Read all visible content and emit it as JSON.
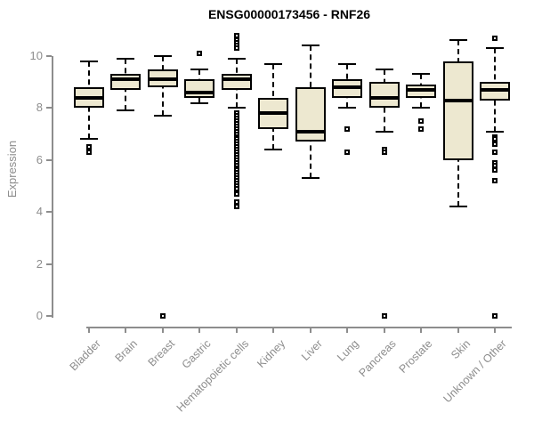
{
  "title": "ENSG00000173456 - RNF26",
  "chart_data": {
    "type": "boxplot",
    "title": "ENSG00000173456 - RNF26",
    "xlabel": "",
    "ylabel": "Expression",
    "ylim": [
      0,
      10.8
    ],
    "yticks": [
      0,
      2,
      4,
      6,
      8,
      10
    ],
    "grid": false,
    "legend": "none",
    "box_fill_color": "#ede8d0",
    "box_line_color": "#000000",
    "axis_color": "#8d8d8d",
    "categories": [
      "Bladder",
      "Brain",
      "Breast",
      "Gastric",
      "Hematopoietic cells",
      "Kidney",
      "Liver",
      "Lung",
      "Pancreas",
      "Prostate",
      "Skin",
      "Unknown / Other"
    ],
    "series": [
      {
        "name": "Bladder",
        "low": 6.8,
        "q1": 8.0,
        "median": 8.4,
        "q3": 8.8,
        "high": 9.8,
        "outliers": [
          6.5,
          6.3
        ]
      },
      {
        "name": "Brain",
        "low": 7.9,
        "q1": 8.7,
        "median": 9.1,
        "q3": 9.3,
        "high": 9.9,
        "outliers": []
      },
      {
        "name": "Breast",
        "low": 7.7,
        "q1": 8.8,
        "median": 9.1,
        "q3": 9.5,
        "high": 10.0,
        "outliers": [
          0
        ]
      },
      {
        "name": "Gastric",
        "low": 8.2,
        "q1": 8.4,
        "median": 8.6,
        "q3": 9.1,
        "high": 9.5,
        "outliers": [
          10.1
        ]
      },
      {
        "name": "Hematopoietic cells",
        "low": 8.0,
        "q1": 8.7,
        "median": 9.1,
        "q3": 9.3,
        "high": 9.9,
        "outliers": [
          10.8,
          10.6,
          10.5,
          10.4,
          10.3,
          7.8,
          7.7,
          7.6,
          7.5,
          7.4,
          7.3,
          7.2,
          7.1,
          7.0,
          6.9,
          6.8,
          6.7,
          6.6,
          6.5,
          6.4,
          6.3,
          6.2,
          6.1,
          6.0,
          5.9,
          5.8,
          5.7,
          5.6,
          5.5,
          5.4,
          5.3,
          5.2,
          5.1,
          5.0,
          4.9,
          4.7,
          4.4,
          4.2
        ]
      },
      {
        "name": "Kidney",
        "low": 6.4,
        "q1": 7.2,
        "median": 7.8,
        "q3": 8.4,
        "high": 9.7,
        "outliers": []
      },
      {
        "name": "Liver",
        "low": 5.3,
        "q1": 6.7,
        "median": 7.1,
        "q3": 8.8,
        "high": 10.4,
        "outliers": []
      },
      {
        "name": "Lung",
        "low": 8.0,
        "q1": 8.4,
        "median": 8.8,
        "q3": 9.1,
        "high": 9.7,
        "outliers": [
          7.2,
          6.3
        ]
      },
      {
        "name": "Pancreas",
        "low": 7.1,
        "q1": 8.0,
        "median": 8.4,
        "q3": 9.0,
        "high": 9.5,
        "outliers": [
          6.4,
          6.3,
          0
        ]
      },
      {
        "name": "Prostate",
        "low": 8.0,
        "q1": 8.4,
        "median": 8.7,
        "q3": 8.9,
        "high": 9.3,
        "outliers": [
          7.5,
          7.2
        ]
      },
      {
        "name": "Skin",
        "low": 4.2,
        "q1": 6.0,
        "median": 8.3,
        "q3": 9.8,
        "high": 10.6,
        "outliers": []
      },
      {
        "name": "Unknown / Other",
        "low": 7.1,
        "q1": 8.3,
        "median": 8.7,
        "q3": 9.0,
        "high": 10.3,
        "outliers": [
          10.7,
          6.9,
          6.8,
          6.6,
          6.3,
          5.9,
          5.8,
          5.6,
          5.2,
          0
        ]
      }
    ]
  }
}
